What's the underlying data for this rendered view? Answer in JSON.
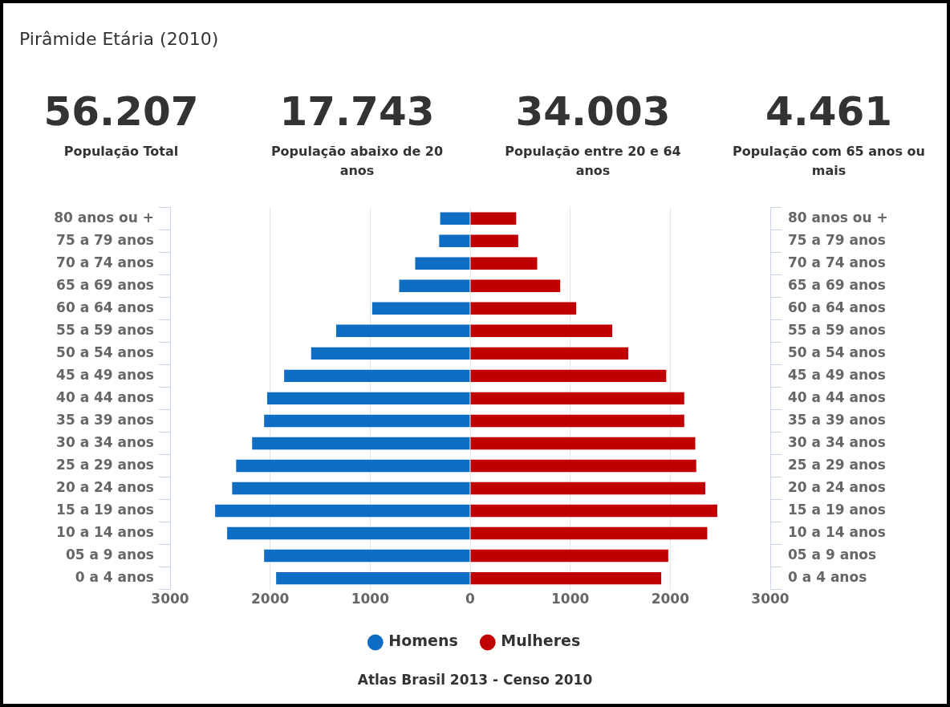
{
  "chart_data": [
    {
      "type": "other",
      "title": "Pirâmide Etária (2010)",
      "annotations": [
        "56.207",
        "População Total",
        "17.743",
        "População abaixo de 20 anos",
        "34.003",
        "População entre 20 e 64 anos",
        "4.461",
        "População com 65 anos ou mais"
      ]
    },
    {
      "type": "bar",
      "orientation": "horizontal",
      "stacked": true,
      "categories": [
        "80 anos ou +",
        "75 a 79 anos",
        "70 a 74 anos",
        "65 a 69 anos",
        "60 a 64 anos",
        "55 a 59 anos",
        "50 a 54 anos",
        "45 a 49 anos",
        "40 a 44 anos",
        "35 a 39 anos",
        "30 a 34 anos",
        "25 a 29 anos",
        "20 a 24 anos",
        "15 a 19 anos",
        "10 a 14 anos",
        "05 a 9 anos",
        "0 a 4 anos"
      ],
      "y2_categories": [
        "80 anos ou +",
        "75 a 79 anos",
        "70 a 74 anos",
        "65 a 69 anos",
        "60 a 64 anos",
        "55 a 59 anos",
        "50 a 54 anos",
        "45 a 49 anos",
        "40 a 44 anos",
        "35 a 39 anos",
        "30 a 34 anos",
        "25 a 29 anos",
        "20 a 24 anos",
        "15 a 19 anos",
        "10 a 14 anos",
        "05 a 9 anos",
        "0 a 4 anos"
      ],
      "series": [
        {
          "name": "Homens",
          "color": "#0f6ec4",
          "values": [
            -300,
            -310,
            -550,
            -710,
            -980,
            -1340,
            -1590,
            -1860,
            -2030,
            -2060,
            -2180,
            -2340,
            -2380,
            -2550,
            -2430,
            -2060,
            -1940
          ]
        },
        {
          "name": "Mulheres",
          "color": "#c00000",
          "values": [
            460,
            480,
            670,
            900,
            1060,
            1420,
            1580,
            1960,
            2140,
            2140,
            2250,
            2260,
            2350,
            2470,
            2370,
            1980,
            1910
          ]
        }
      ],
      "xlim": [
        -3000,
        3000
      ],
      "xticks": [
        {
          "value": -3000,
          "label": "3000"
        },
        {
          "value": -2000,
          "label": "2000"
        },
        {
          "value": -1000,
          "label": "1000"
        },
        0,
        1000,
        2000,
        3000
      ],
      "grid": "x",
      "legend": "bottom",
      "annotations": [
        "Atlas Brasil 2013 - Censo 2010"
      ]
    }
  ]
}
